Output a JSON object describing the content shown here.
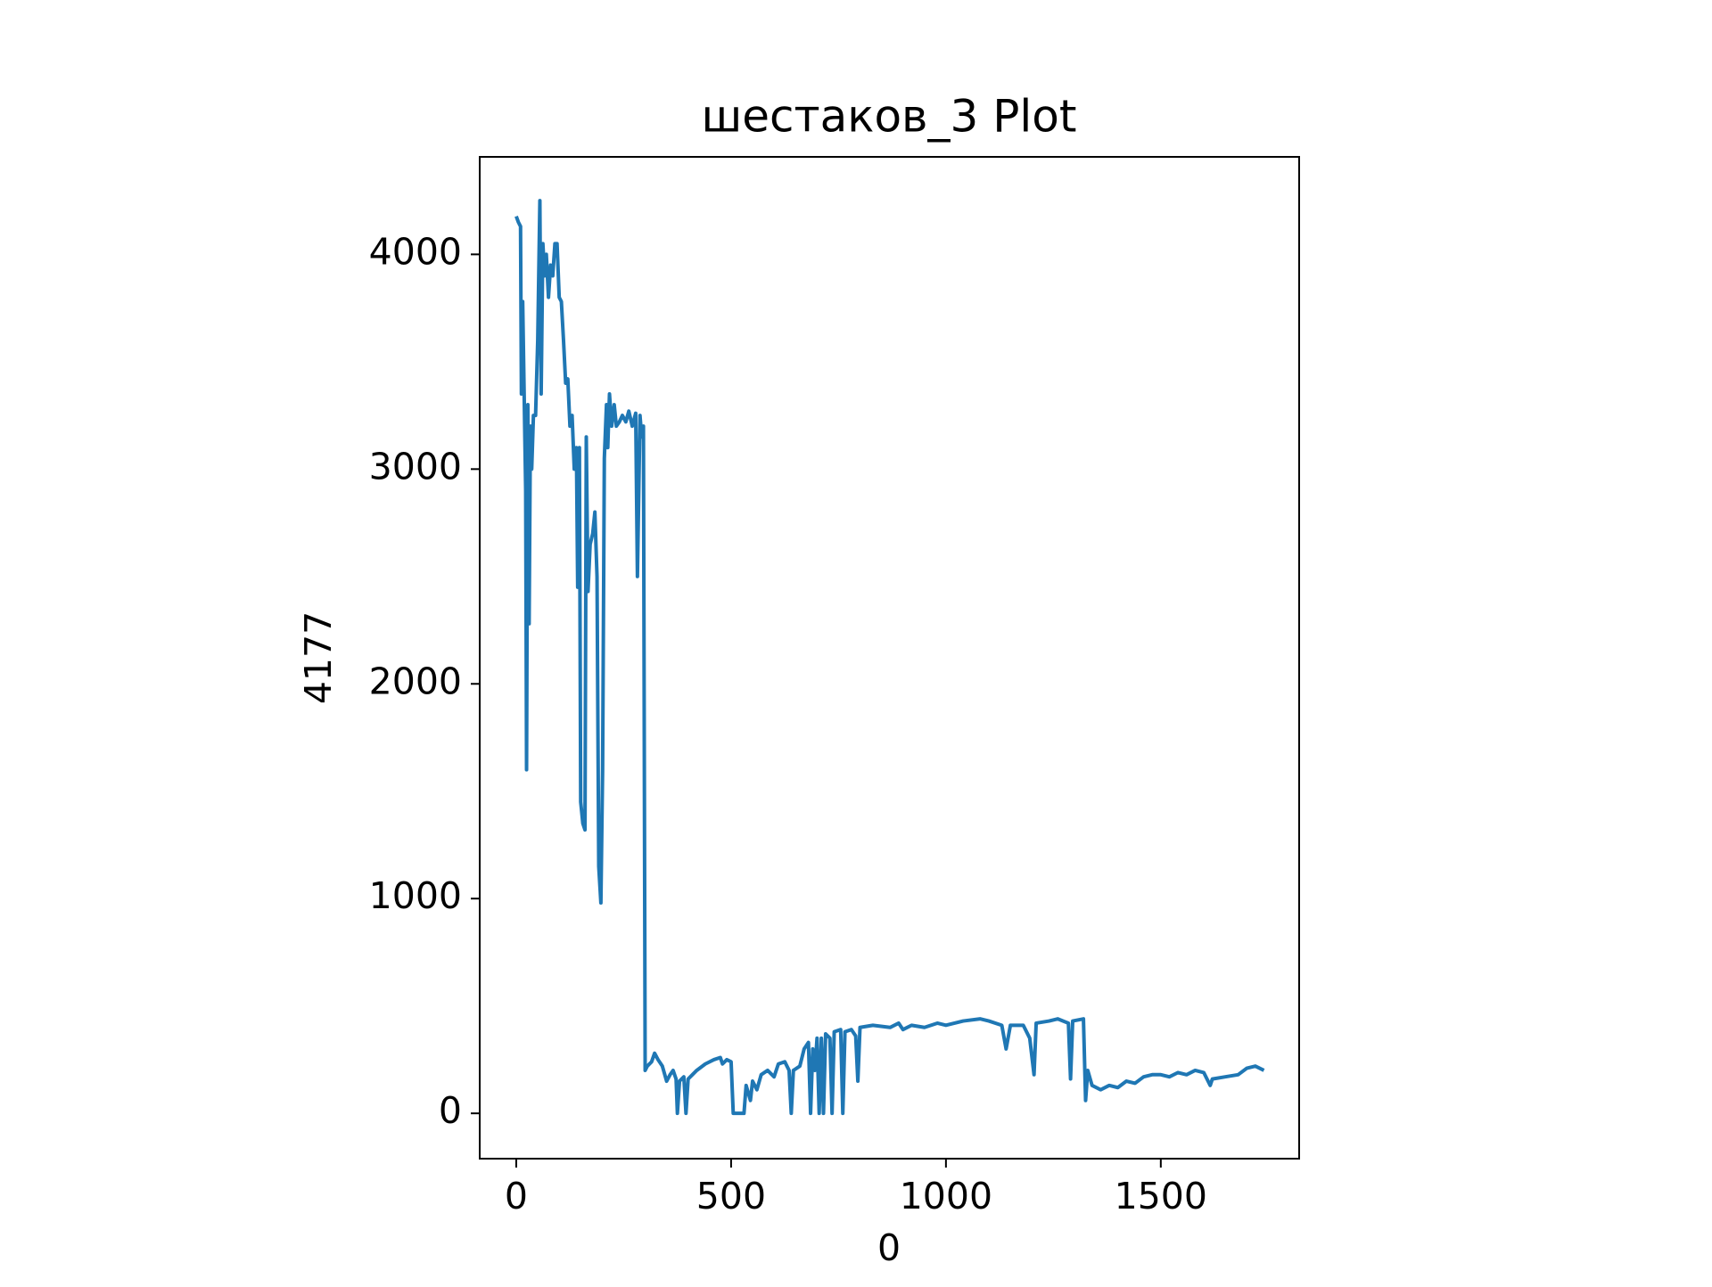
{
  "chart_data": {
    "type": "line",
    "title": "шестаков_3 Plot",
    "x_label": "0",
    "y_label": "4177",
    "x": [
      0,
      5,
      10,
      12,
      15,
      18,
      22,
      24,
      27,
      30,
      33,
      36,
      40,
      45,
      50,
      55,
      58,
      62,
      66,
      70,
      75,
      80,
      85,
      90,
      95,
      100,
      105,
      110,
      115,
      120,
      125,
      130,
      135,
      140,
      143,
      147,
      150,
      155,
      160,
      163,
      167,
      172,
      178,
      183,
      188,
      192,
      197,
      201,
      205,
      210,
      213,
      217,
      222,
      228,
      233,
      240,
      247,
      255,
      262,
      270,
      278,
      282,
      288,
      292,
      296,
      300,
      305,
      315,
      322,
      330,
      340,
      350,
      358,
      365,
      372,
      375,
      380,
      390,
      395,
      400,
      410,
      420,
      440,
      460,
      475,
      480,
      490,
      500,
      505,
      530,
      535,
      545,
      550,
      560,
      570,
      585,
      600,
      610,
      625,
      635,
      640,
      645,
      660,
      670,
      680,
      685,
      690,
      695,
      700,
      705,
      710,
      715,
      720,
      730,
      735,
      740,
      755,
      760,
      765,
      780,
      790,
      795,
      800,
      830,
      870,
      890,
      900,
      920,
      950,
      980,
      1000,
      1040,
      1080,
      1100,
      1130,
      1140,
      1150,
      1180,
      1195,
      1205,
      1210,
      1240,
      1260,
      1285,
      1290,
      1295,
      1320,
      1325,
      1330,
      1340,
      1360,
      1380,
      1400,
      1420,
      1440,
      1460,
      1480,
      1500,
      1520,
      1540,
      1560,
      1580,
      1600,
      1615,
      1620,
      1650,
      1680,
      1700,
      1720,
      1740
    ],
    "series": [
      {
        "color": "#1f77b4",
        "values": [
          4177,
          4150,
          4130,
          3350,
          3780,
          3400,
          2900,
          1600,
          3300,
          2280,
          3200,
          3000,
          3250,
          3250,
          3600,
          4250,
          3350,
          4050,
          3900,
          4000,
          3800,
          3950,
          3900,
          4050,
          4050,
          3800,
          3780,
          3600,
          3400,
          3420,
          3200,
          3250,
          3000,
          3100,
          2450,
          3100,
          1450,
          1350,
          1320,
          3150,
          2430,
          2650,
          2700,
          2800,
          2500,
          1150,
          980,
          1600,
          3050,
          3300,
          3100,
          3350,
          3200,
          3300,
          3200,
          3220,
          3250,
          3220,
          3270,
          3200,
          3260,
          2500,
          3250,
          3150,
          3200,
          200,
          220,
          240,
          280,
          250,
          220,
          150,
          180,
          200,
          160,
          0,
          150,
          170,
          0,
          160,
          180,
          200,
          230,
          250,
          260,
          230,
          250,
          240,
          0,
          0,
          130,
          60,
          150,
          110,
          180,
          200,
          170,
          230,
          240,
          200,
          0,
          200,
          220,
          300,
          330,
          0,
          300,
          200,
          350,
          0,
          350,
          0,
          370,
          350,
          0,
          380,
          390,
          0,
          380,
          390,
          360,
          150,
          400,
          410,
          400,
          420,
          390,
          410,
          400,
          420,
          410,
          430,
          440,
          430,
          410,
          300,
          410,
          410,
          350,
          180,
          420,
          430,
          440,
          420,
          160,
          430,
          440,
          60,
          200,
          130,
          110,
          130,
          120,
          150,
          140,
          170,
          180,
          180,
          170,
          190,
          180,
          200,
          190,
          130,
          160,
          170,
          180,
          210,
          220,
          200
        ]
      }
    ],
    "xlim": [
      -85,
      1822
    ],
    "ylim": [
      -211,
      4454
    ],
    "xticks": [
      0,
      500,
      1000,
      1500
    ],
    "yticks": [
      0,
      1000,
      2000,
      3000,
      4000
    ]
  }
}
